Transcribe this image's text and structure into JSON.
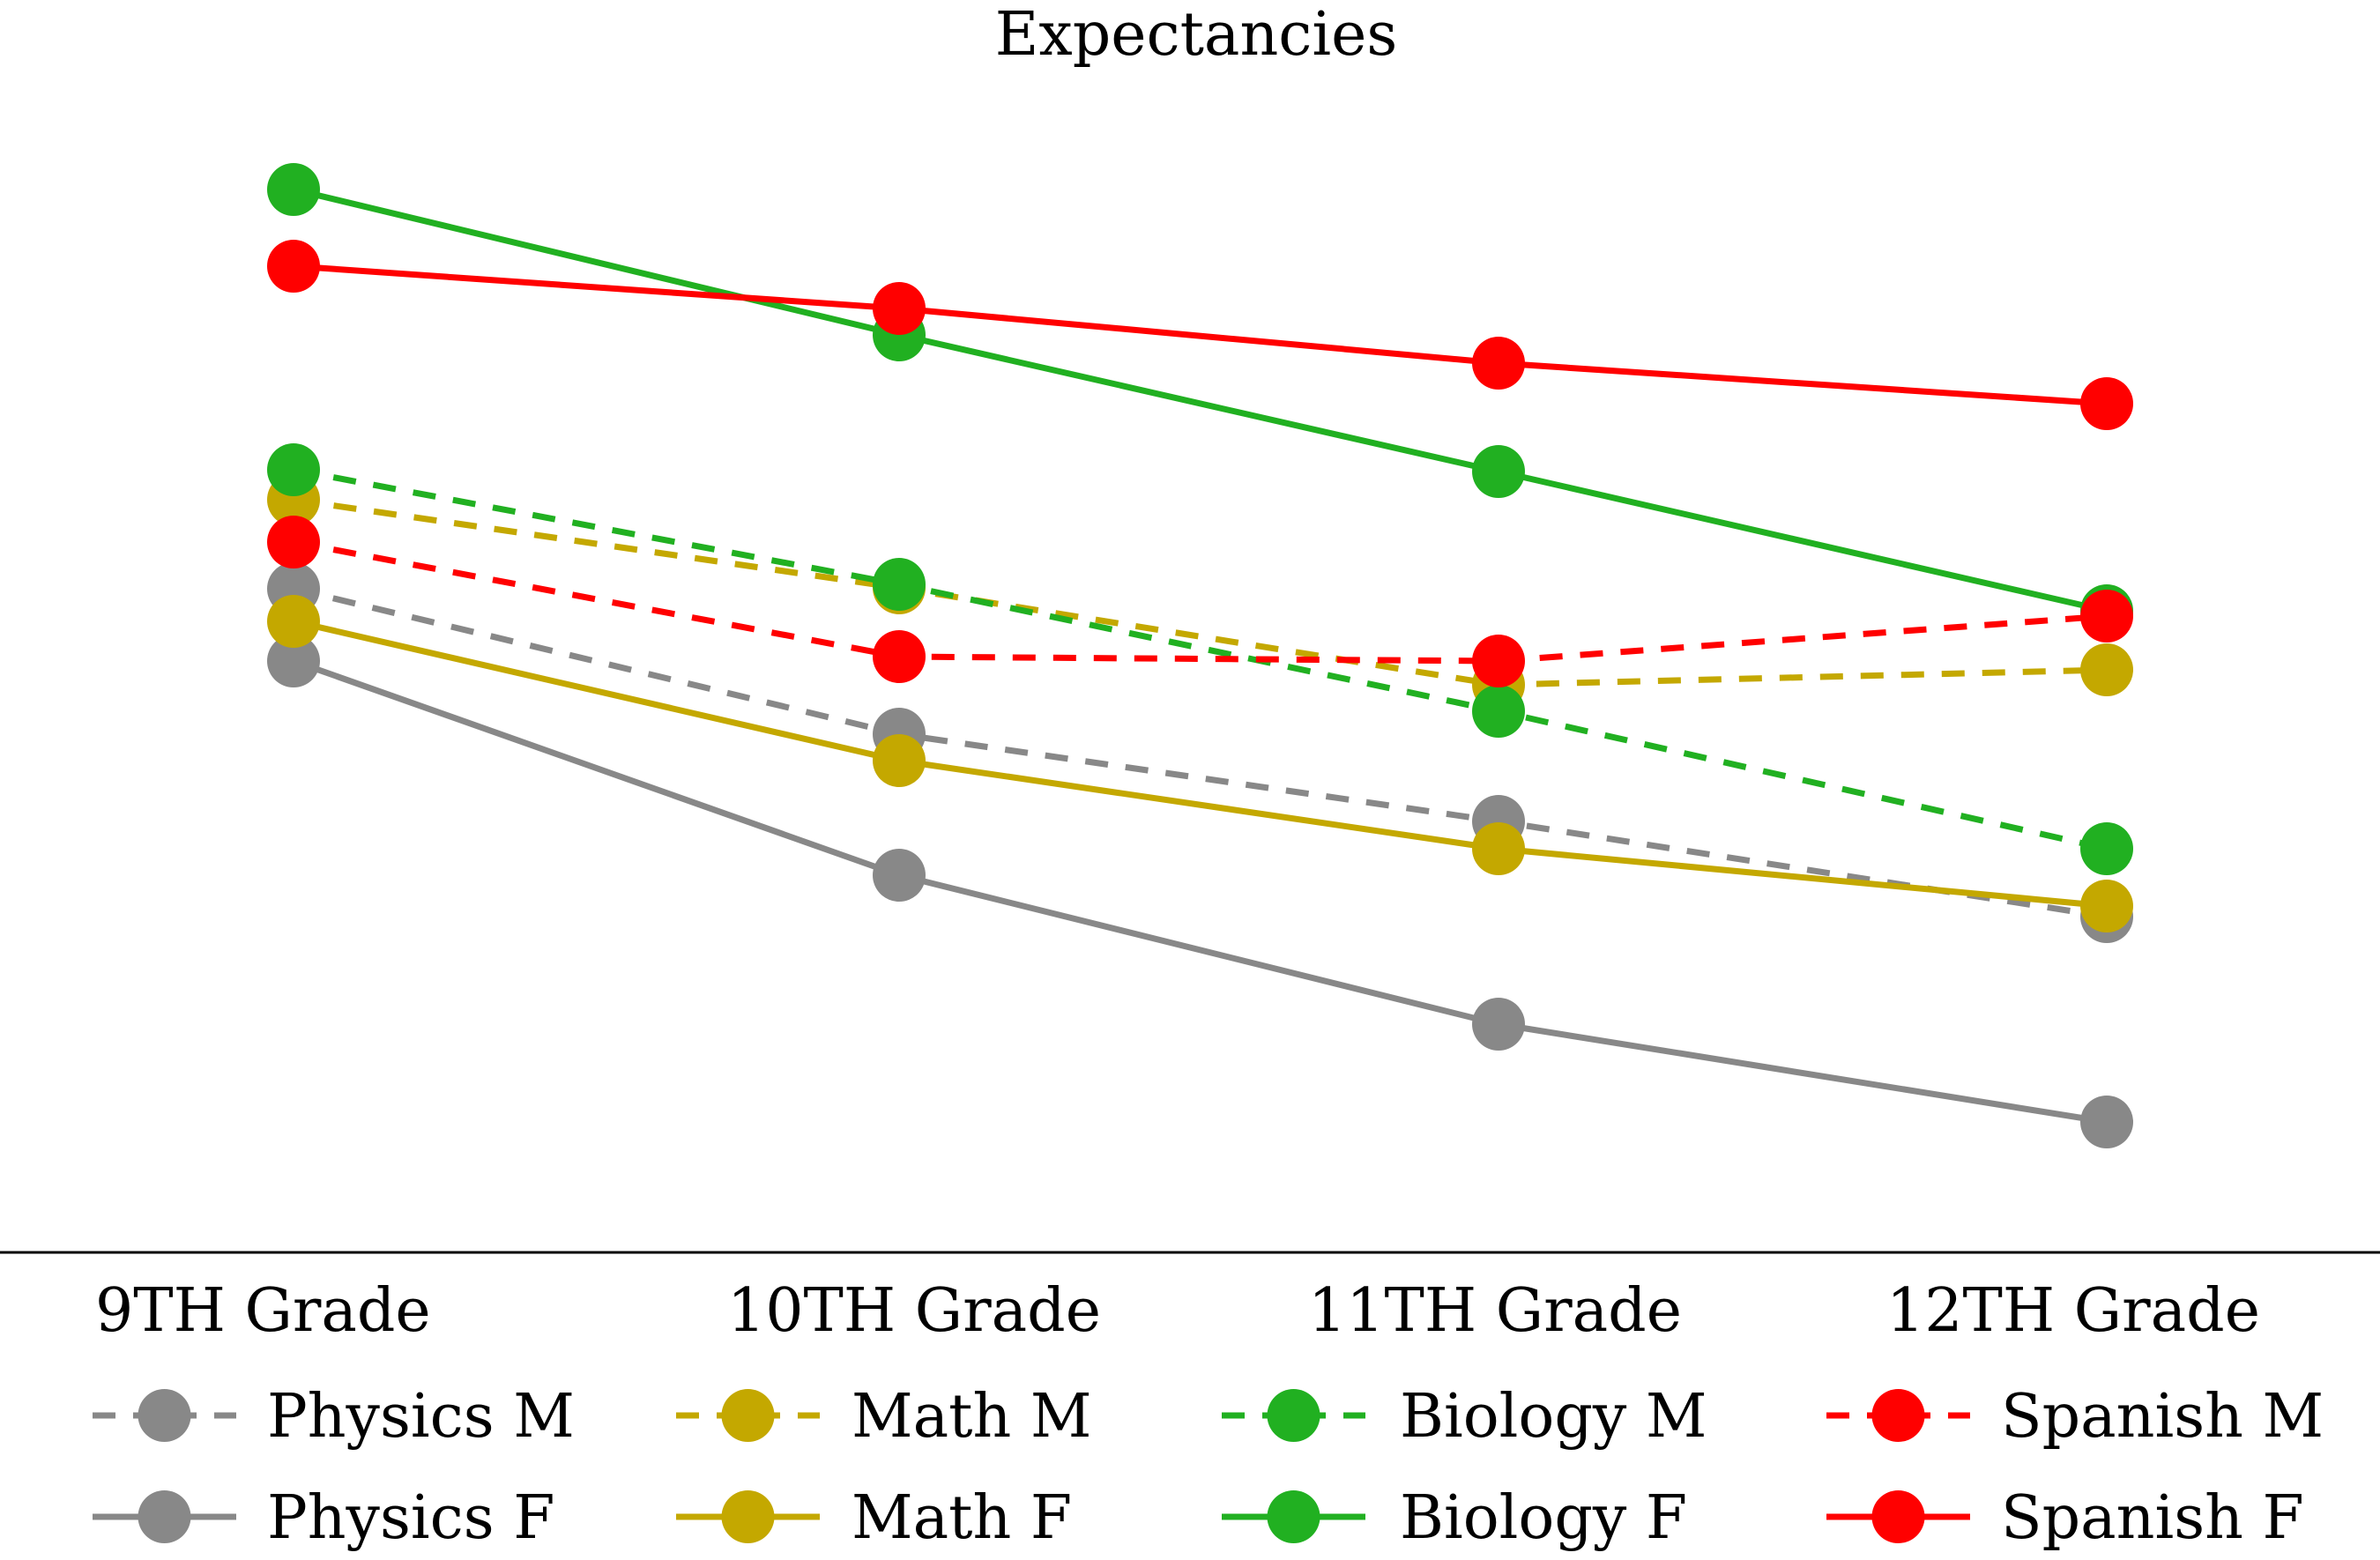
{
  "chart_data": {
    "type": "line",
    "title": "Expectancies",
    "xlabel": "",
    "ylabel": "",
    "y_axis_visible": false,
    "grid": false,
    "ylim": [
      0,
      130
    ],
    "y_units": "relative (no axis shown; values estimated from vertical position)",
    "categories": [
      "9TH Grade",
      "10TH Grade",
      "11TH Grade",
      "12TH Grade"
    ],
    "legend_placement": "bottom",
    "series": [
      {
        "name": "Physics M",
        "color": "#888888",
        "dashed": true,
        "values": [
          73.2,
          56.7,
          46.8,
          36.0
        ]
      },
      {
        "name": "Physics F",
        "color": "#888888",
        "dashed": false,
        "values": [
          65.0,
          40.7,
          23.8,
          12.7
        ]
      },
      {
        "name": "Math M",
        "color": "#C4A800",
        "dashed": true,
        "values": [
          83.3,
          73.3,
          62.3,
          64.0
        ]
      },
      {
        "name": "Math F",
        "color": "#C4A800",
        "dashed": false,
        "values": [
          69.5,
          53.7,
          43.7,
          37.2
        ]
      },
      {
        "name": "Biology M",
        "color": "#21B021",
        "dashed": true,
        "values": [
          86.7,
          73.7,
          59.3,
          43.7
        ]
      },
      {
        "name": "Biology F",
        "color": "#21B021",
        "dashed": false,
        "values": [
          118.5,
          102.0,
          86.5,
          70.7
        ]
      },
      {
        "name": "Spanish M",
        "color": "#FF0000",
        "dashed": true,
        "values": [
          78.5,
          65.5,
          65.0,
          70.1
        ]
      },
      {
        "name": "Spanish F",
        "color": "#FF0000",
        "dashed": false,
        "values": [
          109.8,
          105.0,
          98.8,
          94.2
        ]
      }
    ]
  }
}
